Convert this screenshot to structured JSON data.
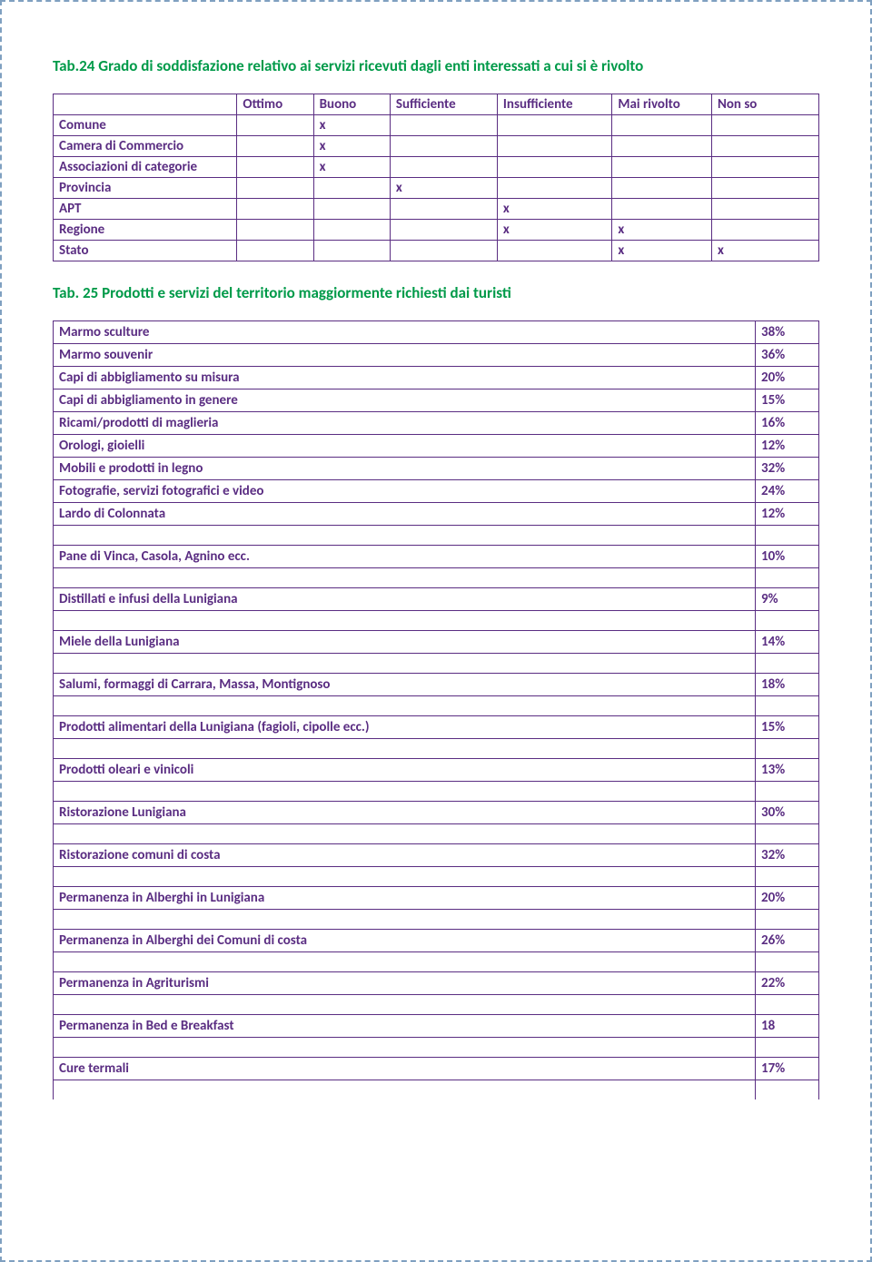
{
  "colors": {
    "heading": "#009a49",
    "text": "#5a2d82",
    "border": "#5a2d82",
    "page_border": "#7fa0c0",
    "background": "#ffffff"
  },
  "tab24": {
    "title": "Tab.24 Grado di soddisfazione relativo ai servizi ricevuti dagli enti interessati a cui si è rivolto",
    "columns": [
      "Ottimo",
      "Buono",
      "Sufficiente",
      "Insufficiente",
      "Mai rivolto",
      "Non so"
    ],
    "col_widths_pct": [
      24,
      10,
      10,
      14,
      15,
      13,
      14
    ],
    "rows": [
      {
        "label": "Comune",
        "marks": [
          "",
          "x",
          "",
          "",
          "",
          ""
        ]
      },
      {
        "label": "Camera di Commercio",
        "marks": [
          "",
          "x",
          "",
          "",
          "",
          ""
        ]
      },
      {
        "label": "Associazioni di categorie",
        "marks": [
          "",
          "x",
          "",
          "",
          "",
          ""
        ]
      },
      {
        "label": "Provincia",
        "marks": [
          "",
          "",
          "x",
          "",
          "",
          ""
        ]
      },
      {
        "label": "APT",
        "marks": [
          "",
          "",
          "",
          "x",
          "",
          ""
        ]
      },
      {
        "label": "Regione",
        "marks": [
          "",
          "",
          "",
          "x",
          "x",
          ""
        ]
      },
      {
        "label": "Stato",
        "marks": [
          "",
          "",
          "",
          "",
          "x",
          "x"
        ]
      }
    ]
  },
  "tab25": {
    "title": "Tab. 25 Prodotti e servizi del territorio maggiormente richiesti dai turisti",
    "group1": [
      {
        "label": "Marmo sculture",
        "pct": "38%"
      },
      {
        "label": "Marmo souvenir",
        "pct": "36%"
      },
      {
        "label": "Capi di abbigliamento su misura",
        "pct": "20%"
      },
      {
        "label": "Capi di abbigliamento in genere",
        "pct": "15%"
      },
      {
        "label": "Ricami/prodotti di maglieria",
        "pct": "16%"
      },
      {
        "label": "Orologi, gioielli",
        "pct": "12%"
      },
      {
        "label": "Mobili e prodotti in legno",
        "pct": "32%"
      },
      {
        "label": "Fotografie, servizi fotografici e video",
        "pct": "24%"
      },
      {
        "label": "Lardo di Colonnata",
        "pct": "12%"
      }
    ],
    "group2": [
      {
        "label": "Pane di Vinca, Casola, Agnino ecc.",
        "pct": "10%"
      },
      {
        "label": "Distillati e infusi della Lunigiana",
        "pct": "9%"
      },
      {
        "label": "Miele della Lunigiana",
        "pct": "14%"
      },
      {
        "label": "Salumi, formaggi di Carrara, Massa, Montignoso",
        "pct": "18%"
      },
      {
        "label": "Prodotti alimentari della Lunigiana (fagioli, cipolle ecc.)",
        "pct": "15%"
      },
      {
        "label": "Prodotti oleari e vinicoli",
        "pct": "13%"
      },
      {
        "label": "Ristorazione Lunigiana",
        "pct": "30%"
      },
      {
        "label": "Ristorazione comuni di costa",
        "pct": "32%"
      },
      {
        "label": "Permanenza in Alberghi in Lunigiana",
        "pct": "20%"
      },
      {
        "label": "Permanenza in Alberghi dei Comuni di costa",
        "pct": "26%"
      },
      {
        "label": "Permanenza in Agriturismi",
        "pct": "22%"
      },
      {
        "label": "Permanenza in Bed e Breakfast",
        "pct": "18"
      },
      {
        "label": "Cure termali",
        "pct": "17%"
      }
    ]
  }
}
